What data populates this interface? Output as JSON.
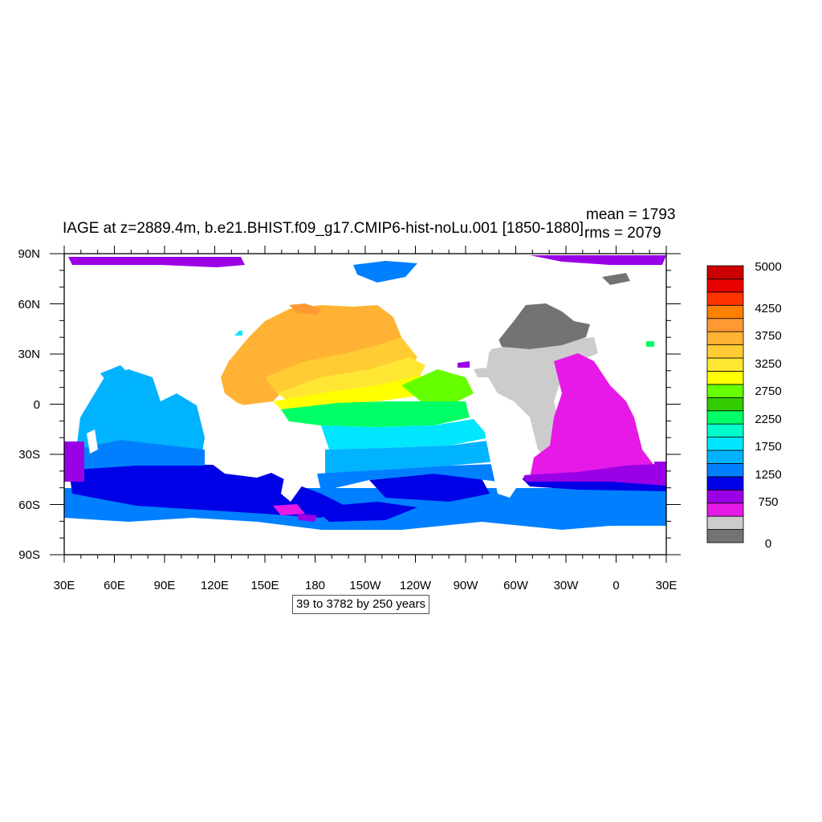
{
  "header": {
    "title": "IAGE at z=2889.4m, b.e21.BHIST.f09_g17.CMIP6-hist-noLu.001 [1850-1880]",
    "mean_label": "mean = 1793",
    "rms_label": "rms = 2079"
  },
  "footer": {
    "contour_note": "39 to 3782 by 250 years"
  },
  "map": {
    "lat_ticks": [
      "90N",
      "60N",
      "30N",
      "0",
      "30S",
      "60S",
      "90S"
    ],
    "lon_ticks": [
      "30E",
      "60E",
      "90E",
      "120E",
      "150E",
      "180",
      "150W",
      "120W",
      "90W",
      "60W",
      "30W",
      "0",
      "30E"
    ],
    "land_color": "#ffffff",
    "statistics": {
      "mean": 1793,
      "rms": 2079,
      "units": "years"
    }
  },
  "colorbar": {
    "colors": [
      "#737373",
      "#cccccc",
      "#e619e6",
      "#9900e6",
      "#0000e6",
      "#0080ff",
      "#00b3ff",
      "#00e6ff",
      "#00ffcc",
      "#00ff66",
      "#33cc00",
      "#66ff00",
      "#ffff00",
      "#ffe633",
      "#ffcc33",
      "#ffb233",
      "#ff9933",
      "#ff8000",
      "#ff3300",
      "#e60000",
      "#cc0000"
    ],
    "labels": [
      "0",
      "750",
      "1250",
      "1750",
      "2250",
      "2750",
      "3250",
      "3750",
      "4250",
      "5000"
    ]
  }
}
